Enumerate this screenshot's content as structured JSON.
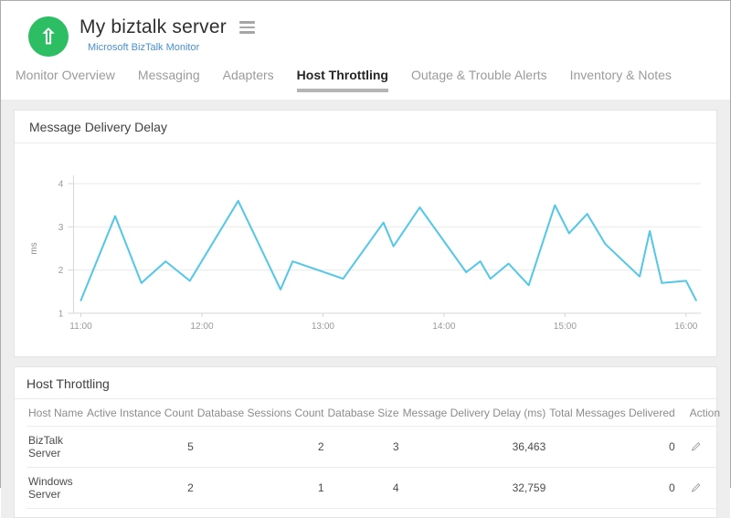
{
  "header": {
    "title": "My biztalk server",
    "subtitle": "Microsoft BizTalk Monitor",
    "avatar_icon": "arrow-up-circle",
    "avatar_glyph": "⇧",
    "menu_icon": "hamburger",
    "colors": {
      "avatar_bg": "#2dbe64",
      "subtitle_link": "#4591d6"
    }
  },
  "tabs": {
    "items": [
      {
        "label": "Monitor Overview",
        "active": false
      },
      {
        "label": "Messaging",
        "active": false
      },
      {
        "label": "Adapters",
        "active": false
      },
      {
        "label": "Host Throttling",
        "active": true
      },
      {
        "label": "Outage & Trouble Alerts",
        "active": false
      },
      {
        "label": "Inventory & Notes",
        "active": false
      }
    ]
  },
  "chart_panel": {
    "title": "Message Delivery Delay"
  },
  "chart_data": {
    "type": "line",
    "title": "Message Delivery Delay",
    "xlabel": "",
    "ylabel": "ms",
    "ylim": [
      1,
      4
    ],
    "yticks": [
      1,
      2,
      3,
      4
    ],
    "xlim_minutes": [
      0,
      310
    ],
    "xtick_minutes": [
      0,
      60,
      120,
      180,
      240,
      300
    ],
    "xtick_labels": [
      "11:00",
      "12:00",
      "13:00",
      "14:00",
      "15:00",
      "16:00"
    ],
    "grid": true,
    "legend": "none",
    "series_name": "Message Delivery Delay (ms)",
    "x_minutes_from_start": [
      0,
      17,
      30,
      42,
      54,
      78,
      99,
      105,
      130,
      150,
      155,
      168,
      191,
      198,
      203,
      212,
      222,
      235,
      242,
      251,
      260,
      277,
      282,
      288,
      300,
      305
    ],
    "values_ms": [
      1.3,
      3.25,
      1.7,
      2.2,
      1.75,
      3.6,
      1.55,
      2.2,
      1.8,
      3.1,
      2.55,
      3.45,
      1.95,
      2.2,
      1.8,
      2.15,
      1.65,
      3.5,
      2.85,
      3.3,
      2.6,
      1.85,
      2.9,
      1.7,
      1.75,
      1.3
    ],
    "line_color": "#53c7e8",
    "grid_color": "#e9e9e9",
    "axis_color": "#d6d6d6",
    "tick_text_color": "#999999"
  },
  "table_panel": {
    "title": "Host Throttling",
    "columns": [
      "Host Name",
      "Active Instance Count",
      "Database Sessions Count",
      "Database Size",
      "Message Delivery Delay (ms)",
      "Total Messages Delivered",
      "Action"
    ],
    "rows": [
      [
        "BizTalk Server",
        "5",
        "2",
        "3",
        "36,463",
        "0"
      ],
      [
        "Windows Server",
        "2",
        "1",
        "4",
        "32,759",
        "0"
      ]
    ],
    "action_icon": "pencil-edit"
  }
}
